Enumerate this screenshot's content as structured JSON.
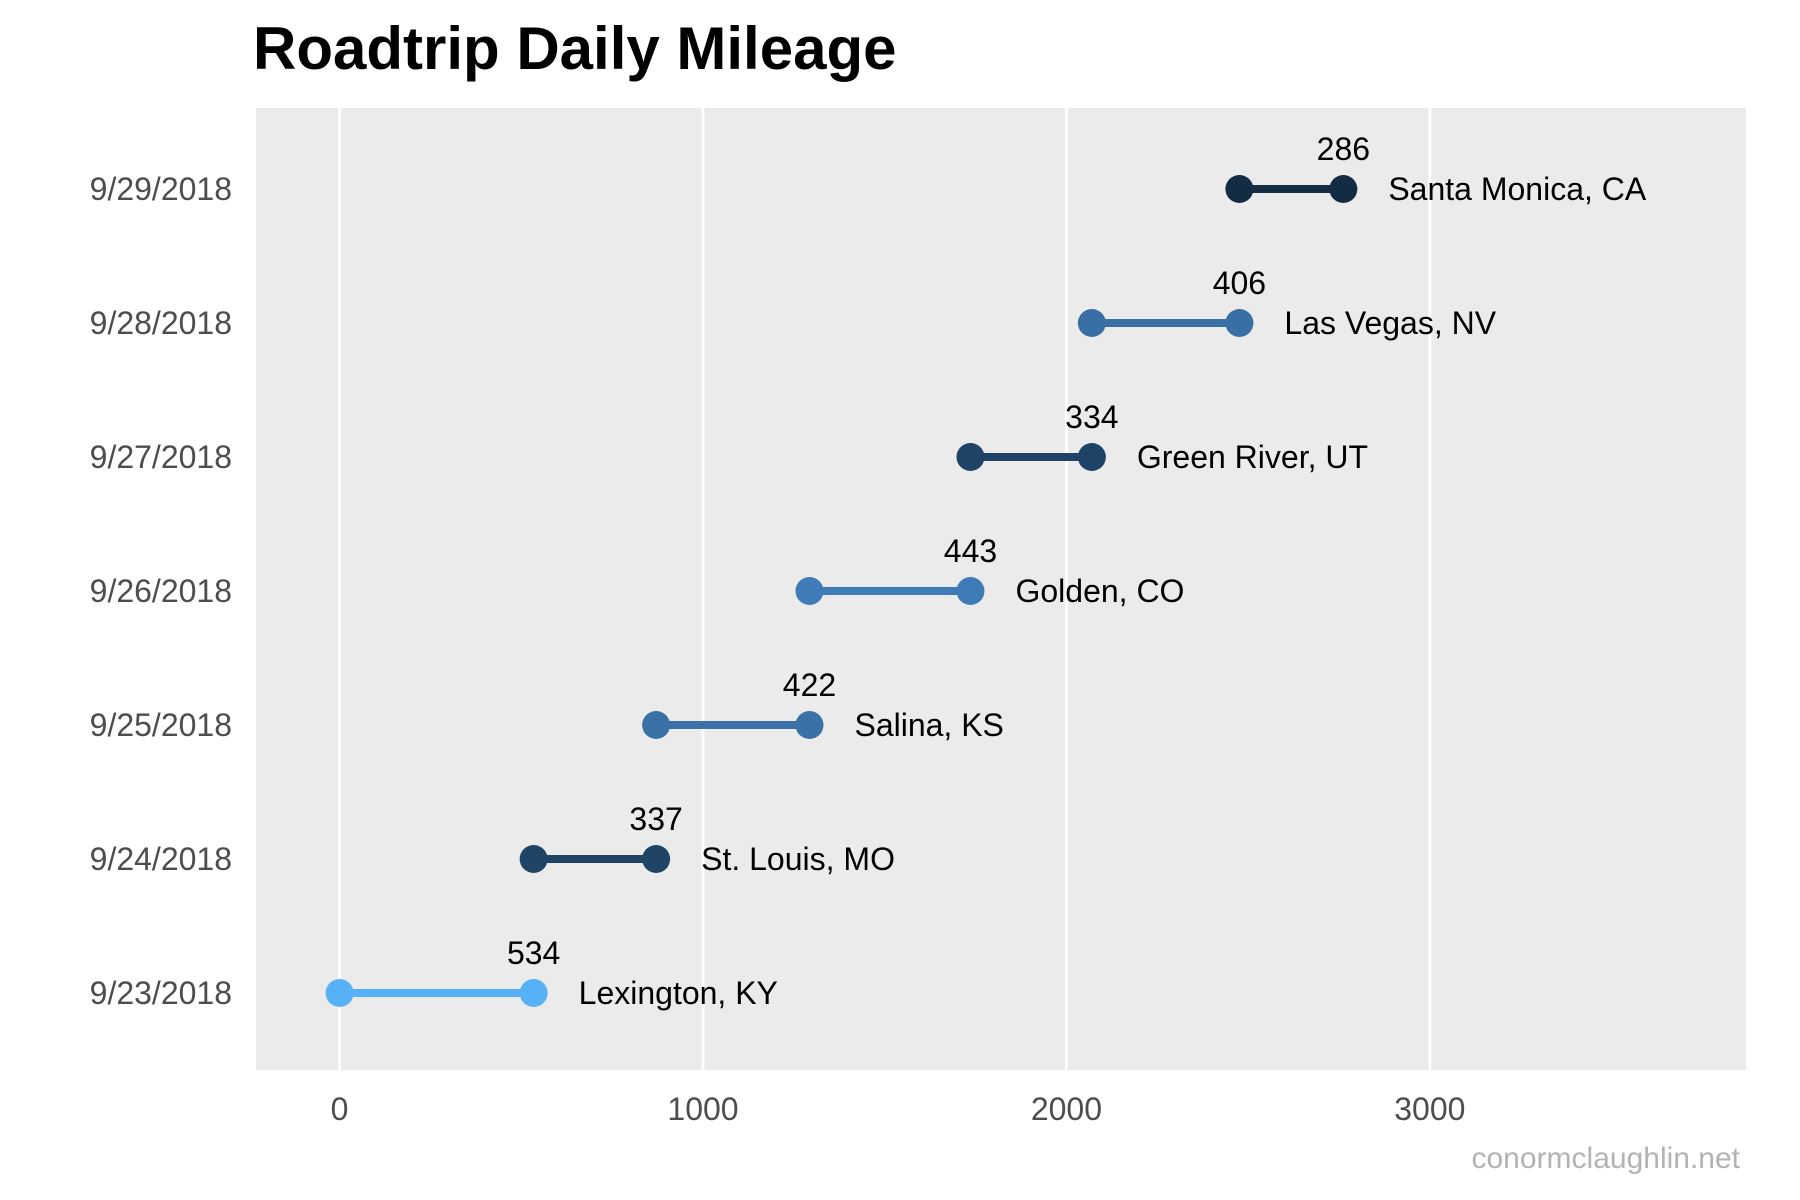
{
  "chart_data": {
    "type": "dumbbell",
    "title": "Roadtrip Daily Mileage",
    "xlabel": "",
    "ylabel": "",
    "xlim": [
      -230,
      3870
    ],
    "x_ticks": [
      0,
      1000,
      2000,
      3000
    ],
    "grid": true,
    "legend": "none",
    "days": [
      {
        "date": "9/23/2018",
        "start": 0,
        "end": 534,
        "miles": 534,
        "destination": "Lexington, KY",
        "color": "#56B1F7"
      },
      {
        "date": "9/24/2018",
        "start": 534,
        "end": 871,
        "miles": 337,
        "destination": "St. Louis, MO",
        "color": "#1F4466"
      },
      {
        "date": "9/25/2018",
        "start": 871,
        "end": 1293,
        "miles": 422,
        "destination": "Salina, KS",
        "color": "#3A71A6"
      },
      {
        "date": "9/26/2018",
        "start": 1293,
        "end": 1736,
        "miles": 443,
        "destination": "Golden, CO",
        "color": "#3F7BB6"
      },
      {
        "date": "9/27/2018",
        "start": 1736,
        "end": 2070,
        "miles": 334,
        "destination": "Green River, UT",
        "color": "#1F4366"
      },
      {
        "date": "9/28/2018",
        "start": 2070,
        "end": 2476,
        "miles": 406,
        "destination": "Las Vegas, NV",
        "color": "#386FA4"
      },
      {
        "date": "9/29/2018",
        "start": 2476,
        "end": 2762,
        "miles": 286,
        "destination": "Santa Monica, CA",
        "color": "#132B43"
      }
    ]
  },
  "caption": "conormclaughlin.net",
  "colors": {
    "panel_background": "#EBEBEB",
    "gridline": "#FFFFFF",
    "tick_text": "#4D4D4D",
    "caption_text": "#B3B3B3"
  }
}
